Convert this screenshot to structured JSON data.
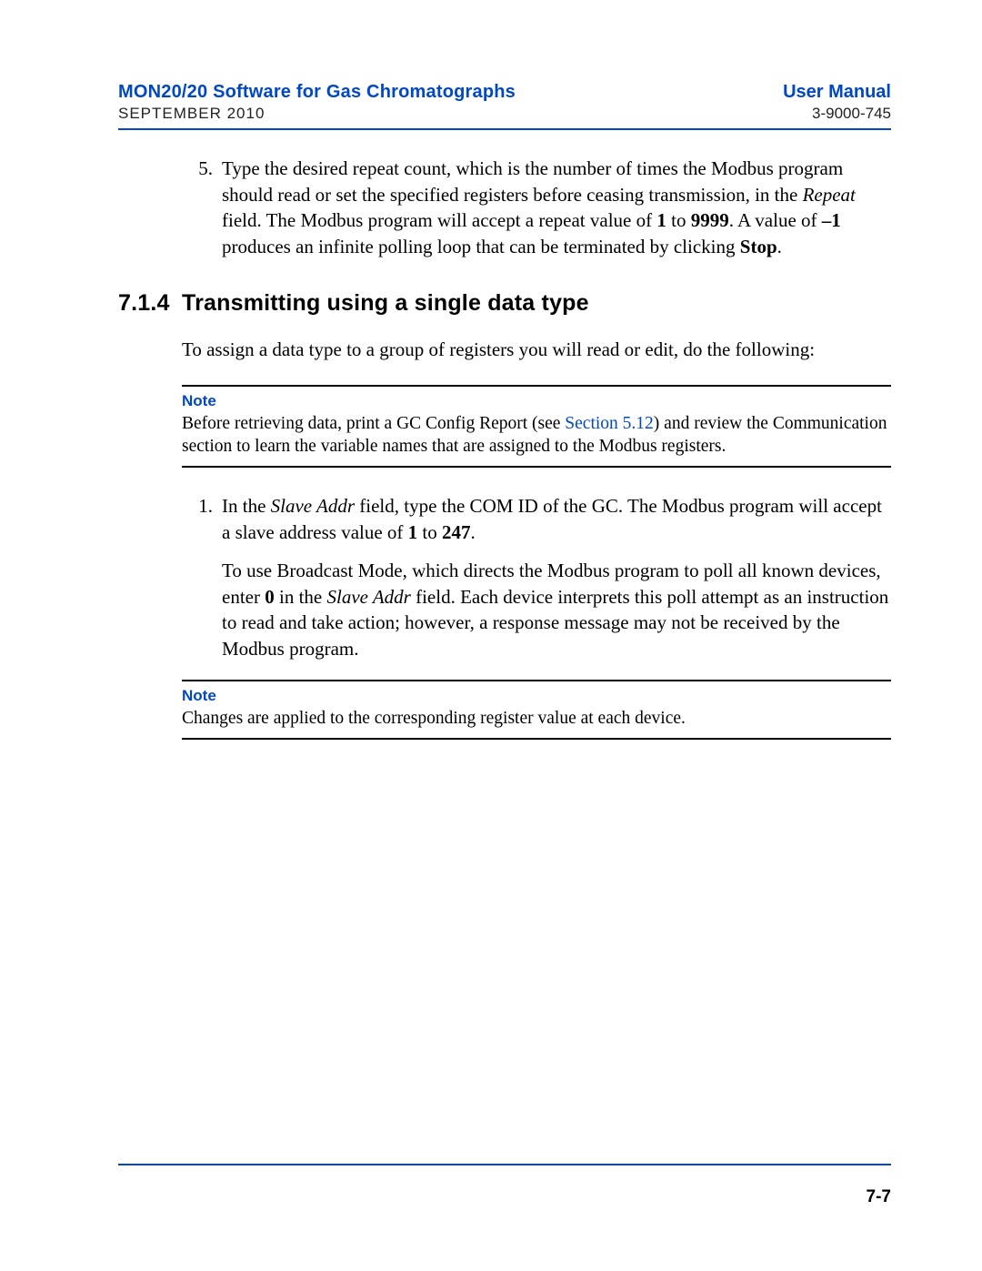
{
  "header": {
    "left_title": "MON20/20 Software for Gas Chromatographs",
    "left_date": "SEPTEMBER 2010",
    "right_title": "User Manual",
    "right_doc": "3-9000-745"
  },
  "item5": {
    "number": "5.",
    "t1": "Type the desired repeat count, which is the number of times the Modbus program should read or set the specified registers before ceasing transmission, in the ",
    "repeat_field": "Repeat",
    "t2": " field.  The Modbus program will accept a repeat value of ",
    "v1": "1",
    "to": " to ",
    "v9999": "9999",
    "t3": ".  A value of ",
    "neg1": "–1",
    "t4": " produces an infinite polling loop that can be terminated by clicking ",
    "stop": "Stop",
    "t5": "."
  },
  "section": {
    "number": "7.1.4",
    "title": "Transmitting using a single data type"
  },
  "intro_para": "To assign a data type to a group of registers you will read or edit, do the following:",
  "note1": {
    "label": "Note",
    "t1": "Before retrieving data, print a GC Config Report (see ",
    "link": "Section 5.12",
    "t2": ") and review the Communication section to learn the variable names that are assigned to the Modbus registers."
  },
  "item1": {
    "number": "1.",
    "a1": "In the ",
    "slave": "Slave Addr",
    "a2": " field, type the COM ID of the GC. The Modbus program will accept a slave address value of ",
    "v1": "1",
    "to": " to ",
    "v247": "247",
    "a3": ".",
    "b1": "To use Broadcast Mode, which directs the Modbus program to poll all known devices, enter ",
    "zero": "0",
    "b2": " in the ",
    "slave2": "Slave Addr",
    "b3": " field.  Each device interprets this poll attempt as an instruction to read and take action; however, a response message may not be received by the Modbus program."
  },
  "note2": {
    "label": "Note",
    "text": "Changes are applied to the corresponding register value at each device."
  },
  "footer": {
    "page_num": "7-7"
  },
  "colors": {
    "link_blue": "#0048c4",
    "text_black": "#000000"
  }
}
